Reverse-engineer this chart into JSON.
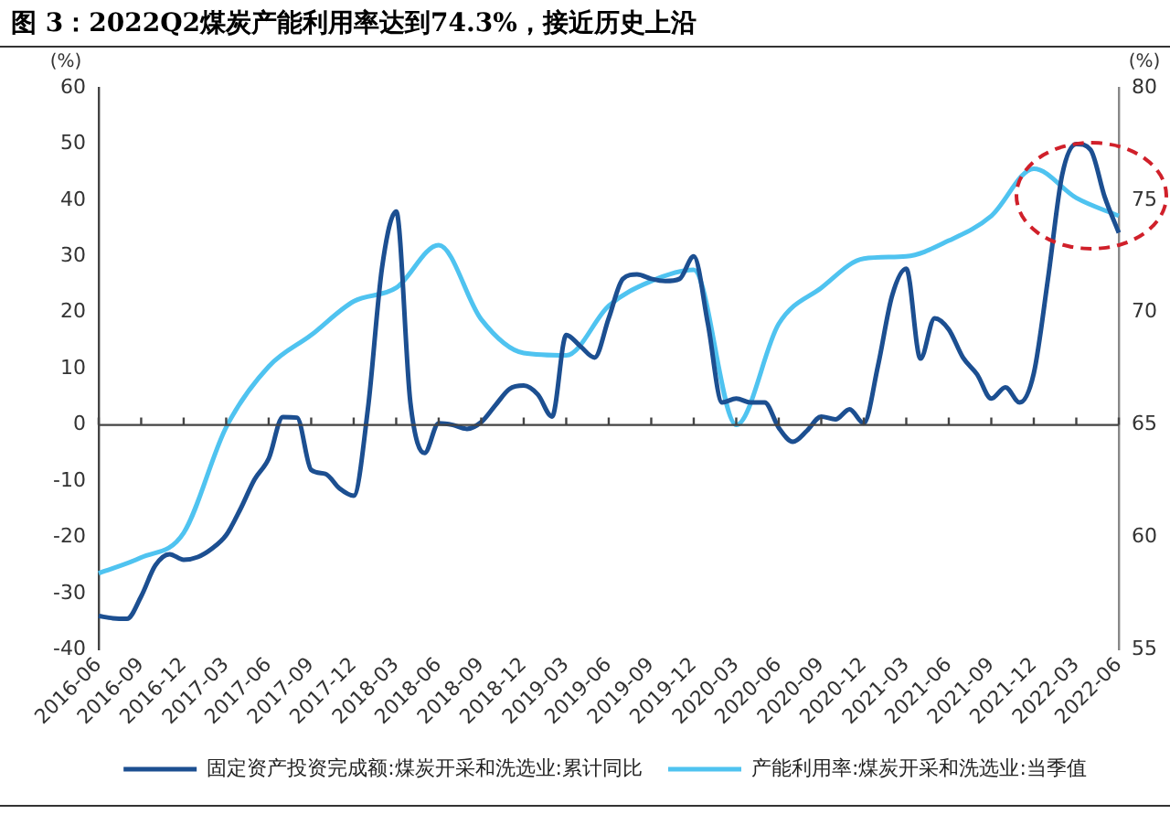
{
  "chart_data": {
    "type": "line",
    "title": "图 3：2022Q2煤炭产能利用率达到74.3%，接近历史上沿",
    "ylabel": "(%)",
    "y2label": "(%)",
    "categories": [
      "2016-06",
      null,
      null,
      "2016-09",
      null,
      null,
      "2016-12",
      null,
      null,
      "2017-03",
      null,
      null,
      "2017-06",
      null,
      null,
      "2017-09",
      null,
      null,
      "2017-12",
      null,
      null,
      "2018-03",
      null,
      null,
      "2018-06",
      null,
      null,
      "2018-09",
      null,
      null,
      "2018-12",
      null,
      null,
      "2019-03",
      null,
      null,
      "2019-06",
      null,
      null,
      "2019-09",
      null,
      null,
      "2019-12",
      null,
      null,
      "2020-03",
      null,
      null,
      "2020-06",
      null,
      null,
      "2020-09",
      null,
      null,
      "2020-12",
      null,
      null,
      "2021-03",
      null,
      null,
      "2021-06",
      null,
      null,
      "2021-09",
      null,
      null,
      "2021-12",
      null,
      null,
      "2022-03",
      null,
      null,
      "2022-06"
    ],
    "series": [
      {
        "name": "固定资产投资完成额:煤炭开采和洗选业:累计同比",
        "color": "#1c4f91",
        "values": [
          -34,
          -34.4,
          -34.5,
          -30.5,
          -25,
          -23,
          -24,
          -23.5,
          -22,
          -19.6,
          -15,
          -9.7,
          -6,
          1.4,
          1.3,
          -8,
          -8.7,
          -11.3,
          -12.6,
          2.8,
          28,
          38,
          4,
          -5,
          0.3,
          0,
          -0.7,
          0.5,
          3.5,
          6.4,
          7,
          5.4,
          1.5,
          16,
          14,
          12,
          19,
          26,
          26.8,
          26,
          25.6,
          26,
          30,
          18,
          4,
          4.7,
          4,
          4,
          -0.5,
          -3,
          -1,
          1.5,
          1,
          2.8,
          0.3,
          10.5,
          23,
          27.8,
          11.8,
          19,
          17,
          12,
          9,
          4.7,
          6.7,
          4,
          9.2,
          26,
          44.5,
          50,
          49,
          40.6,
          34.2
        ]
      },
      {
        "name": "产能利用率:煤炭开采和洗选业:当季值",
        "color": "#4fc3f0",
        "axis": "y2",
        "values": [
          58.4,
          null,
          null,
          59.1,
          null,
          null,
          60.2,
          null,
          null,
          64.9,
          null,
          null,
          67.6,
          null,
          null,
          69.0,
          null,
          null,
          70.5,
          null,
          null,
          71.1,
          null,
          null,
          73.0,
          null,
          null,
          69.7,
          null,
          null,
          68.2,
          null,
          null,
          68.1,
          null,
          null,
          70.3,
          null,
          null,
          71.4,
          null,
          null,
          71.9,
          null,
          null,
          65.0,
          null,
          null,
          69.5,
          null,
          null,
          71.1,
          null,
          null,
          72.4,
          null,
          null,
          72.5,
          null,
          null,
          73.2,
          null,
          null,
          74.3,
          null,
          null,
          76.4,
          null,
          null,
          75.1,
          null,
          null,
          74.3
        ]
      }
    ],
    "ylim": [
      -40,
      60
    ],
    "yticks": [
      -40,
      -30,
      -20,
      -10,
      0,
      10,
      20,
      30,
      40,
      50,
      60
    ],
    "y2lim": [
      55,
      80
    ],
    "y2ticks": [
      55,
      60,
      65,
      70,
      75,
      80
    ],
    "legend": "bottom",
    "marker": "none",
    "line_style": "solid"
  }
}
